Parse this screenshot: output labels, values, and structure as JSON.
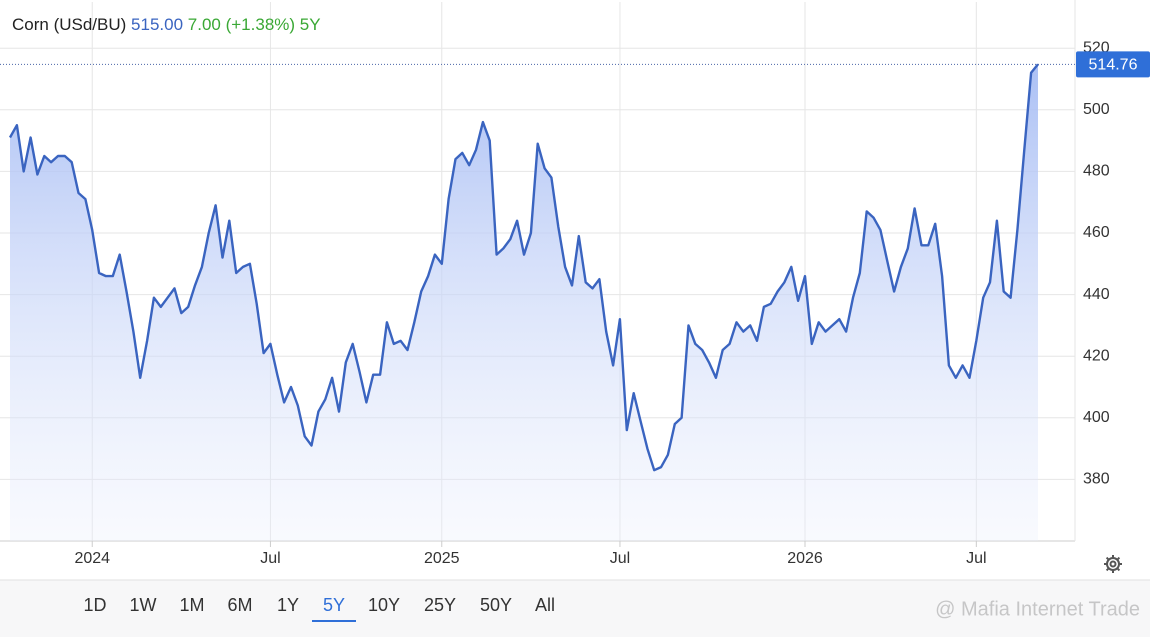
{
  "chart_data": {
    "type": "line",
    "title": "Corn (USd/BU)",
    "price": "515.00",
    "change": "7.00 (+1.38%)",
    "categories": [
      null,
      null,
      null,
      null,
      null,
      null,
      null,
      null,
      null,
      null,
      null,
      null,
      "2024",
      null,
      null,
      null,
      null,
      null,
      null,
      null,
      null,
      null,
      null,
      null,
      null,
      null,
      null,
      null,
      null,
      null,
      null,
      null,
      null,
      null,
      null,
      null,
      null,
      null,
      "Jul",
      null,
      null,
      null,
      null,
      null,
      null,
      null,
      null,
      null,
      null,
      null,
      null,
      null,
      null,
      null,
      null,
      null,
      null,
      null,
      null,
      null,
      null,
      null,
      null,
      "2025",
      null,
      null,
      null,
      null,
      null,
      null,
      null,
      null,
      null,
      null,
      null,
      null,
      null,
      null,
      null,
      null,
      null,
      null,
      null,
      null,
      null,
      null,
      null,
      null,
      null,
      "Jul",
      null,
      null,
      null,
      null,
      null,
      null,
      null,
      null,
      null,
      null,
      null,
      null,
      null,
      null,
      null,
      null,
      null,
      null,
      null,
      null,
      null,
      null,
      null,
      null,
      null,
      null,
      "2026",
      null,
      null,
      null,
      null,
      null,
      null,
      null,
      null,
      null,
      null,
      null,
      null,
      null,
      null,
      null,
      null,
      null,
      null,
      null,
      null,
      null,
      null,
      null,
      null,
      "Jul",
      null,
      null,
      null,
      null,
      null,
      null,
      null,
      null,
      null
    ],
    "series": [
      {
        "color": "#3a64c0",
        "values": [
          491,
          495,
          480,
          491,
          479,
          485,
          483,
          485,
          485,
          483,
          473,
          471,
          461,
          447,
          446,
          446,
          453,
          441,
          428,
          413,
          425,
          439,
          436,
          439,
          442,
          434,
          436,
          443,
          449,
          460,
          469,
          452,
          464,
          447,
          449,
          450,
          437,
          421,
          424,
          414,
          405,
          410,
          404,
          394,
          391,
          402,
          406,
          413,
          402,
          418,
          424,
          415,
          405,
          414,
          414,
          431,
          424,
          425,
          422,
          431,
          441,
          446,
          453,
          450,
          471,
          484,
          486,
          482,
          487,
          496,
          490,
          453,
          455,
          458,
          464,
          453,
          460,
          489,
          481,
          478,
          462,
          449,
          443,
          459,
          444,
          442,
          445,
          428,
          417,
          432,
          396,
          408,
          399,
          390,
          383,
          384,
          388,
          398,
          400,
          430,
          424,
          422,
          418,
          413,
          422,
          424,
          431,
          428,
          430,
          425,
          436,
          437,
          441,
          444,
          449,
          438,
          446,
          424,
          431,
          428,
          430,
          432,
          428,
          439,
          447,
          467,
          465,
          461,
          451,
          441,
          449,
          455,
          468,
          456,
          456,
          463,
          446,
          417,
          413,
          417,
          413,
          425,
          439,
          444,
          464,
          441,
          439,
          461,
          487,
          512,
          514.76
        ]
      }
    ],
    "ylim": [
      360,
      535
    ],
    "yticks": [
      380,
      400,
      420,
      440,
      460,
      480,
      500,
      520
    ],
    "grid": true,
    "ranges": [
      "1D",
      "1W",
      "1M",
      "6M",
      "1Y",
      "5Y",
      "10Y",
      "25Y",
      "50Y",
      "All"
    ],
    "selected_range": 5,
    "watermark": "@ Mafia Internet Trade"
  }
}
